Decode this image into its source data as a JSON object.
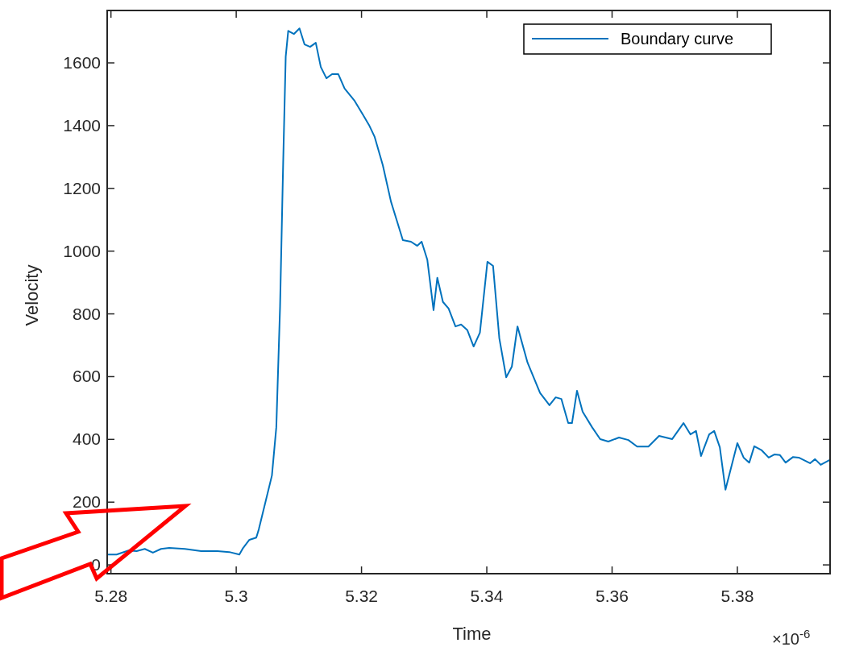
{
  "chart_data": {
    "type": "line",
    "xlabel": "Time",
    "ylabel": "Velocity",
    "annotations": [
      "×10$^{-6}$"
    ],
    "xlim": [
      5.2794,
      5.3948
    ],
    "ylim": [
      -28,
      1767
    ],
    "xticks": [
      5.28,
      5.3,
      5.32,
      5.34,
      5.36,
      5.38
    ],
    "yticks": [
      0,
      200,
      400,
      600,
      800,
      1000,
      1200,
      1400,
      1600
    ],
    "grid": false,
    "legend": "top right",
    "marker": "none",
    "line_style": "solid",
    "series": [
      {
        "name": "Boundary curve",
        "color": "#0072bd",
        "x": [
          5.2794,
          5.2809,
          5.2828,
          5.2841,
          5.2854,
          5.2867,
          5.288,
          5.2893,
          5.2918,
          5.2944,
          5.297,
          5.2989,
          5.3005,
          5.3011,
          5.3021,
          5.3032,
          5.3036,
          5.3047,
          5.3057,
          5.3064,
          5.307,
          5.3075,
          5.3079,
          5.3083,
          5.3092,
          5.3101,
          5.3109,
          5.3118,
          5.3127,
          5.3135,
          5.3144,
          5.3153,
          5.3163,
          5.3173,
          5.3189,
          5.3202,
          5.3212,
          5.3221,
          5.3234,
          5.3247,
          5.3266,
          5.3279,
          5.3289,
          5.3296,
          5.3305,
          5.3315,
          5.3321,
          5.333,
          5.3339,
          5.335,
          5.3359,
          5.3369,
          5.3379,
          5.3389,
          5.3401,
          5.341,
          5.342,
          5.3431,
          5.344,
          5.3449,
          5.3465,
          5.3485,
          5.35,
          5.351,
          5.3519,
          5.353,
          5.3536,
          5.3544,
          5.3553,
          5.3568,
          5.3581,
          5.3594,
          5.3611,
          5.3626,
          5.364,
          5.3658,
          5.3675,
          5.3696,
          5.3714,
          5.3725,
          5.3734,
          5.3742,
          5.3755,
          5.3763,
          5.3772,
          5.3781,
          5.38,
          5.381,
          5.3819,
          5.3827,
          5.3839,
          5.385,
          5.3859,
          5.3868,
          5.3877,
          5.3889,
          5.3898,
          5.3916,
          5.3924,
          5.3933,
          5.3948
        ],
        "values": [
          33,
          33,
          46,
          44,
          51,
          39,
          51,
          54,
          51,
          44,
          44,
          41,
          33,
          54,
          80,
          87,
          113,
          203,
          285,
          439,
          824,
          1287,
          1620,
          1702,
          1692,
          1710,
          1659,
          1651,
          1664,
          1587,
          1551,
          1564,
          1564,
          1518,
          1479,
          1436,
          1402,
          1364,
          1274,
          1158,
          1035,
          1030,
          1017,
          1030,
          973,
          812,
          915,
          838,
          817,
          760,
          766,
          748,
          696,
          740,
          966,
          953,
          722,
          598,
          632,
          760,
          645,
          548,
          509,
          534,
          529,
          452,
          452,
          555,
          488,
          439,
          401,
          393,
          406,
          398,
          377,
          377,
          411,
          401,
          452,
          416,
          427,
          347,
          416,
          427,
          375,
          240,
          388,
          342,
          326,
          378,
          365,
          342,
          352,
          350,
          326,
          344,
          342,
          324,
          337,
          319,
          335
        ]
      }
    ]
  }
}
